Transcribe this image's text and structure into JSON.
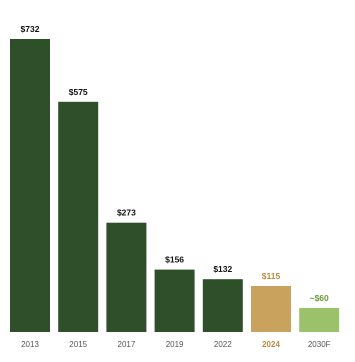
{
  "chart_data": {
    "type": "bar",
    "title": "",
    "xlabel": "",
    "ylabel": "",
    "categories": [
      "2013",
      "2015",
      "2017",
      "2019",
      "2022",
      "2024",
      "2030F"
    ],
    "values": [
      732,
      575,
      273,
      156,
      132,
      115,
      60
    ],
    "value_labels": [
      "$732",
      "$575",
      "$273",
      "$156",
      "$132",
      "$115",
      "~$60"
    ],
    "ylim": [
      0,
      732
    ],
    "grid": false,
    "legend": "none",
    "bar_colors": [
      "#2f4f2a",
      "#2f4f2a",
      "#2f4f2a",
      "#2f4f2a",
      "#2f4f2a",
      "#c9a25e",
      "#9bc26b"
    ],
    "value_label_colors": [
      "#111111",
      "#111111",
      "#111111",
      "#111111",
      "#111111",
      "#c08a3e",
      "#6a9a36"
    ],
    "tick_label_colors": [
      "#555555",
      "#555555",
      "#555555",
      "#555555",
      "#555555",
      "#c08a3e",
      "#555555"
    ],
    "highlighted_category": "2024"
  }
}
